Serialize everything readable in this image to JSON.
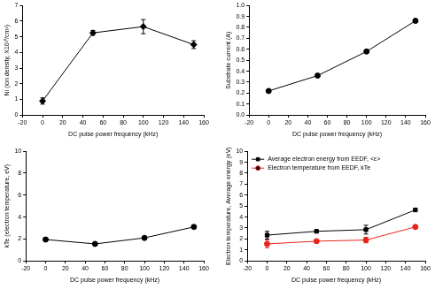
{
  "chart_data": [
    {
      "type": "line",
      "x_label": "DC pulse power frequency (kHz)",
      "y_label": "Ni (ion density, X10¹⁰/cm³)",
      "x": [
        0,
        50,
        100,
        150
      ],
      "values": [
        0.9,
        5.25,
        5.65,
        4.5
      ],
      "errors": [
        0.2,
        0.15,
        0.45,
        0.25
      ],
      "color": "#000000",
      "marker": "diamond",
      "xlim": [
        -20,
        160
      ],
      "xticks": [
        -20,
        0,
        20,
        40,
        60,
        80,
        100,
        120,
        140,
        160
      ],
      "ylim": [
        0,
        7
      ],
      "yticks": [
        0,
        1,
        2,
        3,
        4,
        5,
        6,
        7
      ],
      "grid": false
    },
    {
      "type": "line",
      "x_label": "DC pulse power frequency (kHz)",
      "y_label": "Substrate current (A)",
      "x": [
        0,
        50,
        100,
        150
      ],
      "values": [
        0.22,
        0.36,
        0.58,
        0.86
      ],
      "color": "#000000",
      "marker": "circle",
      "xlim": [
        -20,
        160
      ],
      "xticks": [
        -20,
        0,
        20,
        40,
        60,
        80,
        100,
        120,
        140,
        160
      ],
      "ylim": [
        0,
        1
      ],
      "yticks": [
        {
          "value": 0,
          "label": "0.0"
        },
        0.1,
        0.2,
        0.3,
        0.4,
        0.5,
        0.6,
        0.7,
        0.8,
        0.9,
        {
          "value": 1,
          "label": "1.0"
        }
      ],
      "grid": false
    },
    {
      "type": "line",
      "x_label": "DC pulse power frequency (kHz)",
      "y_label": "kTe (electron temperature, eV)",
      "x": [
        0,
        50,
        100,
        150
      ],
      "values": [
        1.95,
        1.55,
        2.1,
        3.1
      ],
      "errors": [
        0.1,
        0.05,
        0.05,
        0.15
      ],
      "color": "#000000",
      "marker": "circle",
      "xlim": [
        -20,
        160
      ],
      "xticks": [
        -20,
        0,
        20,
        40,
        60,
        80,
        100,
        120,
        140,
        160
      ],
      "ylim": [
        0,
        10
      ],
      "yticks": [
        0,
        2,
        4,
        6,
        8,
        10
      ],
      "grid": false
    },
    {
      "type": "line",
      "x_label": "DC pulse power frequency (kHz)",
      "y_label": "Electron temperature, Average energy (eV)",
      "x": [
        0,
        50,
        100,
        150
      ],
      "series": [
        {
          "name": "Average electron energy from EEDF, <ε>",
          "color": "#000000",
          "marker": "square",
          "values": [
            2.35,
            2.7,
            2.85,
            4.65
          ],
          "errors": [
            0.35,
            0.1,
            0.4,
            0.1
          ]
        },
        {
          "name": "Electron temperature from EEDF, kTe",
          "color": "#e8251c",
          "marker": "circle",
          "values": [
            1.55,
            1.8,
            1.9,
            3.1
          ],
          "errors": [
            0.35,
            0.1,
            0.25,
            0.1
          ]
        }
      ],
      "xlim": [
        -20,
        160
      ],
      "xticks": [
        -20,
        0,
        20,
        40,
        60,
        80,
        100,
        120,
        140,
        160
      ],
      "ylim": [
        0,
        10
      ],
      "yticks": [
        0,
        1,
        2,
        3,
        4,
        5,
        6,
        7,
        8,
        9,
        10
      ],
      "grid": false,
      "legend": "upper left"
    }
  ]
}
